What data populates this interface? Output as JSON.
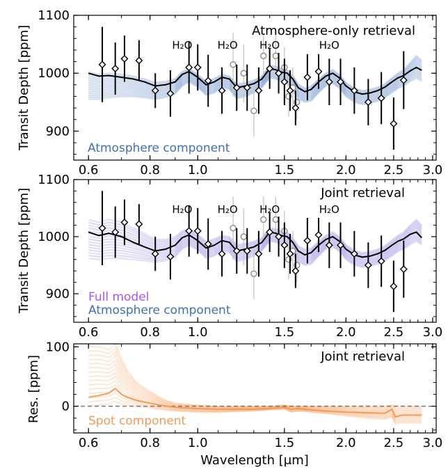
{
  "colors": {
    "atmosphere": "#3f6fb5",
    "full_model": "#a855f7",
    "spot": "#f59a55",
    "best_fit": "#000000",
    "gray_points": "#8a8a8a"
  },
  "axes_shared": {
    "xlabel": "Wavelength [μm]",
    "x_scale": "log",
    "xlim": [
      0.56,
      3.05
    ],
    "x_ticks": [
      0.6,
      0.8,
      1.0,
      1.5,
      2.0,
      2.5,
      3.0
    ],
    "x_tick_labels": [
      "0.6",
      "0.8",
      "1.0",
      "1.5",
      "2.0",
      "2.5",
      "3.0"
    ],
    "h2o_labels": [
      {
        "wavelength": 0.93,
        "text": "H₂O"
      },
      {
        "wavelength": 1.15,
        "text": "H₂O"
      },
      {
        "wavelength": 1.4,
        "text": "H₂O"
      },
      {
        "wavelength": 1.85,
        "text": "H₂O"
      }
    ]
  },
  "chart_data": [
    {
      "type": "line",
      "panel_label": "Atmosphere-only retrieval",
      "ylabel": "Transit Depth [ppm]",
      "ylim": [
        850,
        1100
      ],
      "y_ticks": [
        900,
        1000,
        1100
      ],
      "legend": [
        "Atmosphere component"
      ],
      "model_x": [
        0.6,
        0.63,
        0.66,
        0.7,
        0.74,
        0.78,
        0.82,
        0.86,
        0.9,
        0.93,
        0.96,
        1.0,
        1.04,
        1.08,
        1.12,
        1.16,
        1.2,
        1.25,
        1.3,
        1.35,
        1.4,
        1.44,
        1.48,
        1.52,
        1.56,
        1.6,
        1.65,
        1.7,
        1.76,
        1.82,
        1.88,
        1.94,
        2.0,
        2.08,
        2.16,
        2.24,
        2.32,
        2.4,
        2.48,
        2.55,
        2.62,
        2.7,
        2.78,
        2.85
      ],
      "best_fit": [
        1000,
        995,
        996,
        993,
        990,
        985,
        978,
        980,
        985,
        998,
        1003,
        993,
        980,
        985,
        993,
        990,
        975,
        978,
        982,
        990,
        1008,
        1006,
        1002,
        1000,
        990,
        975,
        968,
        972,
        985,
        995,
        1000,
        992,
        978,
        968,
        964,
        966,
        970,
        976,
        985,
        992,
        996,
        1004,
        1010,
        1005
      ],
      "band_low": [
        955,
        955,
        958,
        960,
        960,
        958,
        955,
        958,
        964,
        978,
        985,
        976,
        962,
        966,
        976,
        972,
        956,
        960,
        966,
        975,
        992,
        990,
        986,
        982,
        970,
        956,
        950,
        952,
        966,
        978,
        982,
        974,
        960,
        950,
        946,
        948,
        952,
        958,
        966,
        974,
        978,
        986,
        992,
        986
      ],
      "band_high": [
        1002,
        998,
        1000,
        998,
        995,
        990,
        984,
        986,
        990,
        1003,
        1008,
        998,
        986,
        991,
        998,
        995,
        981,
        984,
        988,
        995,
        1014,
        1012,
        1008,
        1005,
        996,
        981,
        974,
        978,
        990,
        1000,
        1006,
        998,
        984,
        974,
        970,
        972,
        976,
        982,
        992,
        1000,
        1006,
        1018,
        1030,
        1022
      ],
      "series": [
        {
          "name": "observed",
          "x": [
            0.64,
            0.68,
            0.71,
            0.76,
            0.82,
            0.88,
            0.96,
            1.0,
            1.05,
            1.12,
            1.2,
            1.26,
            1.33,
            1.4,
            1.46,
            1.5,
            1.54,
            1.58,
            1.67,
            1.76,
            1.85,
            1.95,
            2.08,
            2.22,
            2.36,
            2.5,
            2.62
          ],
          "y": [
            1015,
            1008,
            1025,
            1022,
            970,
            965,
            1010,
            1010,
            987,
            970,
            975,
            975,
            970,
            1008,
            1000,
            985,
            970,
            940,
            993,
            1003,
            985,
            985,
            970,
            950,
            957,
            913,
            988
          ],
          "yerr": [
            65,
            45,
            40,
            35,
            30,
            40,
            45,
            40,
            45,
            40,
            40,
            40,
            40,
            35,
            35,
            40,
            35,
            30,
            40,
            30,
            40,
            40,
            40,
            40,
            45,
            45,
            50
          ]
        },
        {
          "name": "gray",
          "x": [
            1.18,
            1.24,
            1.3,
            1.36,
            1.44,
            1.5,
            1.53,
            1.56,
            1.59
          ],
          "y": [
            1015,
            1000,
            935,
            1030,
            1030,
            1010,
            960,
            975,
            950
          ],
          "yerr": [
            55,
            50,
            45,
            40,
            40,
            35,
            35,
            35,
            30
          ]
        }
      ]
    },
    {
      "type": "line",
      "panel_label": "Joint retrieval",
      "ylabel": "Transit Depth [ppm]",
      "ylim": [
        850,
        1100
      ],
      "y_ticks": [
        900,
        1000,
        1100
      ],
      "legend": [
        "Full model",
        "Atmosphere component"
      ],
      "model_x": [
        0.6,
        0.63,
        0.66,
        0.7,
        0.74,
        0.78,
        0.82,
        0.86,
        0.9,
        0.93,
        0.96,
        1.0,
        1.04,
        1.08,
        1.12,
        1.16,
        1.2,
        1.25,
        1.3,
        1.35,
        1.4,
        1.44,
        1.48,
        1.52,
        1.56,
        1.6,
        1.65,
        1.7,
        1.76,
        1.82,
        1.88,
        1.94,
        2.0,
        2.08,
        2.16,
        2.24,
        2.32,
        2.4,
        2.48,
        2.55,
        2.62,
        2.7,
        2.78,
        2.85
      ],
      "best_fit": [
        1008,
        1002,
        1006,
        1000,
        990,
        982,
        975,
        978,
        985,
        998,
        1003,
        993,
        980,
        985,
        993,
        990,
        975,
        978,
        982,
        990,
        1008,
        1006,
        1002,
        1000,
        990,
        975,
        968,
        972,
        985,
        995,
        1000,
        992,
        978,
        968,
        964,
        966,
        970,
        976,
        985,
        992,
        996,
        1004,
        1008,
        998
      ],
      "band_low": [
        962,
        960,
        962,
        962,
        960,
        958,
        955,
        958,
        964,
        978,
        985,
        976,
        962,
        966,
        976,
        972,
        956,
        960,
        966,
        975,
        992,
        990,
        986,
        982,
        970,
        956,
        950,
        952,
        966,
        978,
        982,
        974,
        960,
        950,
        946,
        948,
        952,
        958,
        966,
        974,
        978,
        986,
        992,
        986
      ],
      "band_high": [
        1030,
        1025,
        1030,
        1025,
        1015,
        1005,
        995,
        995,
        1000,
        1010,
        1014,
        1004,
        992,
        996,
        1002,
        1000,
        986,
        988,
        992,
        998,
        1016,
        1014,
        1010,
        1008,
        998,
        984,
        978,
        980,
        992,
        1002,
        1008,
        1000,
        986,
        976,
        972,
        974,
        978,
        984,
        994,
        1002,
        1008,
        1020,
        1030,
        1020
      ],
      "series": [
        {
          "name": "observed",
          "x": [
            0.64,
            0.68,
            0.71,
            0.76,
            0.82,
            0.88,
            0.96,
            1.0,
            1.05,
            1.12,
            1.2,
            1.26,
            1.33,
            1.4,
            1.46,
            1.5,
            1.54,
            1.58,
            1.67,
            1.76,
            1.85,
            1.95,
            2.08,
            2.22,
            2.36,
            2.5,
            2.62
          ],
          "y": [
            1015,
            1008,
            1025,
            1022,
            970,
            965,
            1010,
            1010,
            987,
            970,
            975,
            975,
            970,
            1008,
            1000,
            985,
            970,
            940,
            993,
            1003,
            985,
            985,
            970,
            950,
            957,
            913,
            943
          ],
          "yerr": [
            65,
            45,
            40,
            35,
            30,
            40,
            45,
            40,
            45,
            40,
            40,
            40,
            40,
            35,
            35,
            40,
            35,
            30,
            40,
            30,
            40,
            40,
            40,
            40,
            45,
            45,
            50
          ]
        },
        {
          "name": "gray",
          "x": [
            1.18,
            1.24,
            1.3,
            1.36,
            1.44,
            1.5,
            1.53,
            1.56,
            1.59
          ],
          "y": [
            1015,
            1000,
            935,
            1030,
            1030,
            1010,
            960,
            975,
            950
          ],
          "yerr": [
            55,
            50,
            45,
            40,
            40,
            35,
            35,
            35,
            30
          ]
        }
      ]
    },
    {
      "type": "line",
      "panel_label": "Joint retrieval",
      "ylabel": "Res. [ppm]",
      "ylim": [
        -45,
        105
      ],
      "y_ticks": [
        0,
        100
      ],
      "legend": [
        "Spot component"
      ],
      "model_x": [
        0.6,
        0.63,
        0.66,
        0.68,
        0.7,
        0.72,
        0.75,
        0.8,
        0.85,
        0.9,
        1.0,
        1.1,
        1.2,
        1.3,
        1.4,
        1.5,
        1.55,
        1.6,
        1.7,
        1.8,
        2.0,
        2.2,
        2.4,
        2.48,
        2.52,
        2.6,
        2.7,
        2.85
      ],
      "best_fit": [
        15,
        18,
        22,
        30,
        20,
        15,
        10,
        5,
        1,
        -2,
        -4,
        -5,
        -5,
        -5,
        -4,
        -2,
        -5,
        -4,
        -6,
        -8,
        -10,
        -11,
        -12,
        -5,
        -18,
        -15,
        -15,
        -15
      ],
      "band_low": [
        0,
        2,
        4,
        8,
        4,
        2,
        0,
        -3,
        -6,
        -8,
        -10,
        -10,
        -9,
        -8,
        -6,
        -5,
        -10,
        -8,
        -10,
        -12,
        -16,
        -20,
        -22,
        -18,
        -30,
        -28,
        -28,
        -28
      ],
      "band_high": [
        100,
        100,
        95,
        105,
        80,
        60,
        40,
        25,
        12,
        5,
        2,
        0,
        0,
        0,
        0,
        2,
        0,
        0,
        0,
        0,
        0,
        0,
        0,
        2,
        0,
        0,
        0,
        0
      ],
      "reference_line": 0
    }
  ]
}
